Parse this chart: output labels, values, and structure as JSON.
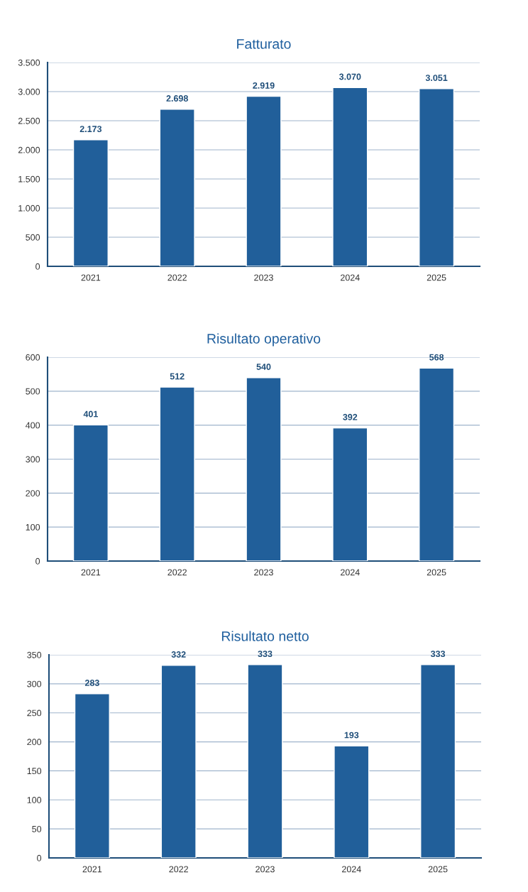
{
  "chart_data": [
    {
      "type": "bar",
      "title": "Fatturato",
      "categories": [
        "2021",
        "2022",
        "2023",
        "2024",
        "2025"
      ],
      "values": [
        2173,
        2698,
        2919,
        3070,
        3051
      ],
      "value_labels": [
        "2.173",
        "2.698",
        "2.919",
        "3.070",
        "3.051"
      ],
      "color": "#215f9a",
      "ylim": [
        0,
        3500
      ],
      "yticks": [
        0,
        500,
        {
          "value": 1000,
          "label": "1.000"
        },
        {
          "value": 1500,
          "label": "1.500"
        },
        {
          "value": 2000,
          "label": "2.000"
        },
        {
          "value": 2500,
          "label": "2.500"
        },
        {
          "value": 3000,
          "label": "3.000"
        },
        {
          "value": 3500,
          "label": "3.500"
        }
      ],
      "grid": "y",
      "legend": false
    },
    {
      "type": "bar",
      "title": "Risultato operativo",
      "categories": [
        "2021",
        "2022",
        "2023",
        "2024",
        "2025"
      ],
      "values": [
        401,
        512,
        540,
        392,
        568
      ],
      "data_labels": true,
      "color": "#215f9a",
      "ylim": [
        0,
        600
      ],
      "yticks": [
        0,
        100,
        200,
        300,
        400,
        500,
        600
      ],
      "grid": "y",
      "legend": false
    },
    {
      "type": "bar",
      "title": "Risultato netto",
      "categories": [
        "2021",
        "2022",
        "2023",
        "2024",
        "2025"
      ],
      "values": [
        283,
        332,
        333,
        193,
        333
      ],
      "data_labels": true,
      "color": "#215f9a",
      "ylim": [
        0,
        350
      ],
      "yticks": [
        0,
        50,
        100,
        150,
        200,
        250,
        300,
        350
      ],
      "grid": "y",
      "legend": false
    }
  ]
}
